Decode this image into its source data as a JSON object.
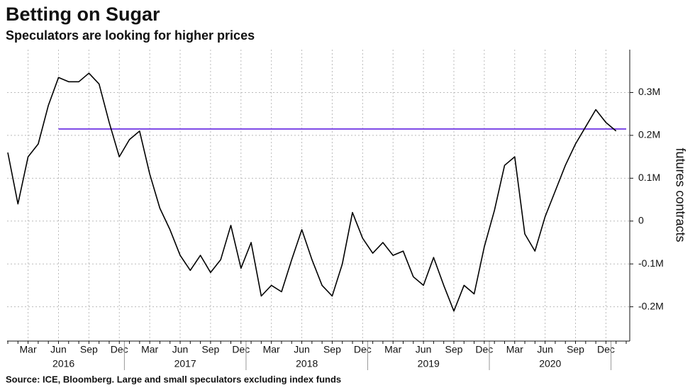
{
  "chart_data": {
    "type": "line",
    "title": "Betting on Sugar",
    "subtitle": "Speculators are looking for higher prices",
    "source": "Source: ICE, Bloomberg. Large and small speculators excluding index funds",
    "y_axis_label": "futures contracts",
    "x": [
      "2016-01",
      "2016-02",
      "2016-03",
      "2016-04",
      "2016-05",
      "2016-06",
      "2016-07",
      "2016-08",
      "2016-09",
      "2016-10",
      "2016-11",
      "2016-12",
      "2017-01",
      "2017-02",
      "2017-03",
      "2017-04",
      "2017-05",
      "2017-06",
      "2017-07",
      "2017-08",
      "2017-09",
      "2017-10",
      "2017-11",
      "2017-12",
      "2018-01",
      "2018-02",
      "2018-03",
      "2018-04",
      "2018-05",
      "2018-06",
      "2018-07",
      "2018-08",
      "2018-09",
      "2018-10",
      "2018-11",
      "2018-12",
      "2019-01",
      "2019-02",
      "2019-03",
      "2019-04",
      "2019-05",
      "2019-06",
      "2019-07",
      "2019-08",
      "2019-09",
      "2019-10",
      "2019-11",
      "2019-12",
      "2020-01",
      "2020-02",
      "2020-03",
      "2020-04",
      "2020-05",
      "2020-06",
      "2020-07",
      "2020-08",
      "2020-09",
      "2020-10",
      "2020-11",
      "2020-12",
      "2021-01"
    ],
    "values": [
      160000,
      40000,
      150000,
      180000,
      270000,
      335000,
      325000,
      325000,
      345000,
      320000,
      230000,
      150000,
      190000,
      210000,
      110000,
      30000,
      -20000,
      -80000,
      -115000,
      -80000,
      -120000,
      -90000,
      -10000,
      -110000,
      -50000,
      -175000,
      -150000,
      -165000,
      -90000,
      -20000,
      -90000,
      -150000,
      -175000,
      -100000,
      20000,
      -40000,
      -75000,
      -50000,
      -80000,
      -70000,
      -130000,
      -150000,
      -85000,
      -150000,
      -210000,
      -150000,
      -170000,
      -60000,
      25000,
      130000,
      150000,
      -30000,
      -70000,
      10000,
      70000,
      130000,
      180000,
      220000,
      260000,
      230000,
      210000
    ],
    "color": "#000000",
    "reference_line": {
      "value": 215000,
      "from": "2016-06",
      "color": "#7b45e6"
    },
    "xlim": [
      "2016-01",
      "2021-02"
    ],
    "xticks": [
      {
        "value": "2016-03",
        "label": "Mar"
      },
      {
        "value": "2016-06",
        "label": "Jun"
      },
      {
        "value": "2016-09",
        "label": "Sep"
      },
      {
        "value": "2016-12",
        "label": "Dec"
      },
      {
        "value": "2017-03",
        "label": "Mar"
      },
      {
        "value": "2017-06",
        "label": "Jun"
      },
      {
        "value": "2017-09",
        "label": "Sep"
      },
      {
        "value": "2017-12",
        "label": "Dec"
      },
      {
        "value": "2018-03",
        "label": "Mar"
      },
      {
        "value": "2018-06",
        "label": "Jun"
      },
      {
        "value": "2018-09",
        "label": "Sep"
      },
      {
        "value": "2018-12",
        "label": "Dec"
      },
      {
        "value": "2019-03",
        "label": "Mar"
      },
      {
        "value": "2019-06",
        "label": "Jun"
      },
      {
        "value": "2019-09",
        "label": "Sep"
      },
      {
        "value": "2019-12",
        "label": "Dec"
      },
      {
        "value": "2020-03",
        "label": "Mar"
      },
      {
        "value": "2020-06",
        "label": "Jun"
      },
      {
        "value": "2020-09",
        "label": "Sep"
      },
      {
        "value": "2020-12",
        "label": "Dec"
      }
    ],
    "years": [
      "2016",
      "2017",
      "2018",
      "2019",
      "2020"
    ],
    "ylim": [
      -280000,
      400000
    ],
    "yticks": [
      {
        "value": -200000,
        "label": "-0.2M"
      },
      {
        "value": -100000,
        "label": "-0.1M"
      },
      0,
      {
        "value": 100000,
        "label": "0.1M"
      },
      {
        "value": 200000,
        "label": "0.2M"
      },
      {
        "value": 300000,
        "label": "0.3M"
      }
    ],
    "grid": true
  }
}
